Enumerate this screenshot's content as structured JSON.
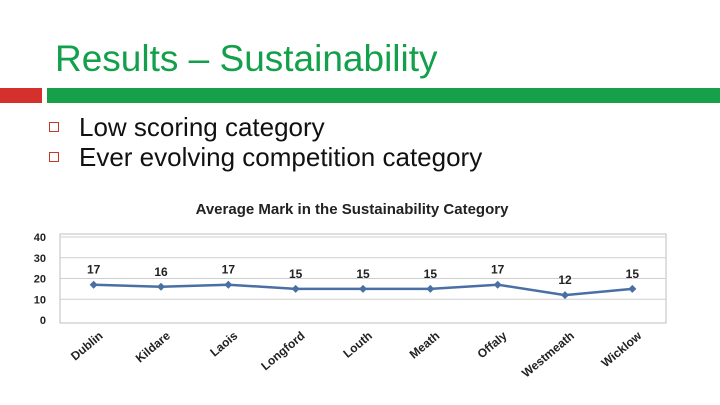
{
  "slide": {
    "title": "Results – Sustainability",
    "bullets": [
      "Low scoring category",
      "Ever evolving competition category"
    ],
    "accent_colors": {
      "title": "#12a04a",
      "bar_red": "#d4312d",
      "bar_green": "#16a04a",
      "bullet_marker": "#c0392b"
    },
    "bullet_icon": "square-outline-icon"
  },
  "chart_data": {
    "type": "line",
    "title": "Average Mark in the Sustainability Category",
    "xlabel": "",
    "ylabel": "",
    "categories": [
      "Dublin",
      "Kildare",
      "Laois",
      "Longford",
      "Louth",
      "Meath",
      "Offaly",
      "Westmeath",
      "Wicklow"
    ],
    "series": [
      {
        "values": [
          17,
          16,
          17,
          15,
          15,
          15,
          17,
          12,
          15
        ],
        "color": "#4a6fa5"
      }
    ],
    "data_labels": [
      "17",
      "16",
      "17",
      "15",
      "15",
      "15",
      "17",
      "12",
      "15"
    ],
    "ylim": [
      0,
      40
    ],
    "yticks": [
      0,
      10,
      20,
      30,
      40
    ],
    "grid": true,
    "legend": "none",
    "marker": "diamond"
  }
}
